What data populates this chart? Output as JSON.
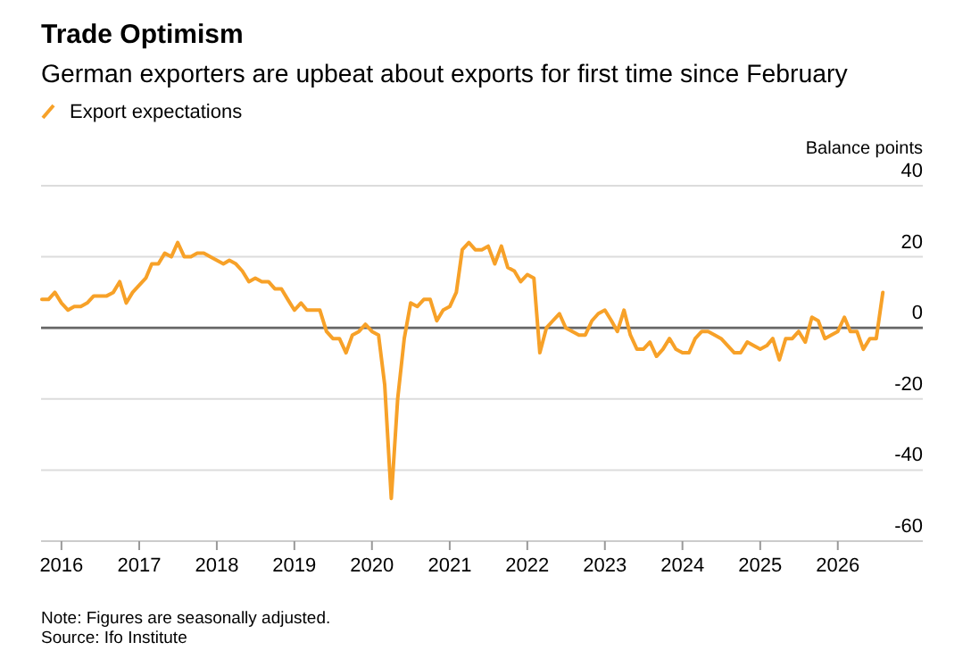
{
  "chart_data": {
    "type": "line",
    "title": "Trade Optimism",
    "subtitle": "German exporters are upbeat about exports for first time since February",
    "ylabel": "Balance points",
    "x": [
      "2015-10",
      "2015-11",
      "2015-12",
      "2016-01",
      "2016-02",
      "2016-03",
      "2016-04",
      "2016-05",
      "2016-06",
      "2016-07",
      "2016-08",
      "2016-09",
      "2016-10",
      "2016-11",
      "2016-12",
      "2017-01",
      "2017-02",
      "2017-03",
      "2017-04",
      "2017-05",
      "2017-06",
      "2017-07",
      "2017-08",
      "2017-09",
      "2017-10",
      "2017-11",
      "2017-12",
      "2018-01",
      "2018-02",
      "2018-03",
      "2018-04",
      "2018-05",
      "2018-06",
      "2018-07",
      "2018-08",
      "2018-09",
      "2018-10",
      "2018-11",
      "2018-12",
      "2019-01",
      "2019-02",
      "2019-03",
      "2019-04",
      "2019-05",
      "2019-06",
      "2019-07",
      "2019-08",
      "2019-09",
      "2019-10",
      "2019-11",
      "2019-12",
      "2020-01",
      "2020-02",
      "2020-03",
      "2020-04",
      "2020-05",
      "2020-06",
      "2020-07",
      "2020-08",
      "2020-09",
      "2020-10",
      "2020-11",
      "2020-12",
      "2021-01",
      "2021-02",
      "2021-03",
      "2021-04",
      "2021-05",
      "2021-06",
      "2021-07",
      "2021-08",
      "2021-09",
      "2021-10",
      "2021-11",
      "2021-12",
      "2022-01",
      "2022-02",
      "2022-03",
      "2022-04",
      "2022-05",
      "2022-06",
      "2022-07",
      "2022-08",
      "2022-09",
      "2022-10",
      "2022-11",
      "2022-12",
      "2023-01",
      "2023-02",
      "2023-03",
      "2023-04",
      "2023-05",
      "2023-06",
      "2023-07",
      "2023-08",
      "2023-09",
      "2023-10",
      "2023-11",
      "2023-12",
      "2024-01",
      "2024-02",
      "2024-03",
      "2024-04",
      "2024-05",
      "2024-06",
      "2024-07",
      "2024-08",
      "2024-09",
      "2024-10",
      "2024-11",
      "2024-12",
      "2025-01",
      "2025-02",
      "2025-03",
      "2025-04",
      "2025-05",
      "2025-06",
      "2025-07",
      "2025-08",
      "2025-09",
      "2025-10",
      "2025-11",
      "2025-12",
      "2026-01",
      "2026-02",
      "2026-03",
      "2026-04",
      "2026-05",
      "2026-06",
      "2026-07",
      "2026-08"
    ],
    "series": [
      {
        "name": "Export expectations",
        "color": "#f7a128",
        "values": [
          8,
          8,
          10,
          7,
          5,
          6,
          6,
          7,
          9,
          9,
          9,
          10,
          13,
          7,
          10,
          12,
          14,
          18,
          18,
          21,
          20,
          24,
          20,
          20,
          21,
          21,
          20,
          19,
          18,
          19,
          18,
          16,
          13,
          14,
          13,
          13,
          11,
          11,
          8,
          5,
          7,
          5,
          5,
          5,
          -1,
          -3,
          -3,
          -7,
          -2,
          -1,
          1,
          -1,
          -2,
          -16,
          -48,
          -20,
          -3,
          7,
          6,
          8,
          8,
          2,
          5,
          6,
          10,
          22,
          24,
          22,
          22,
          23,
          18,
          23,
          17,
          16,
          13,
          15,
          14,
          -7,
          0,
          2,
          4,
          0,
          -1,
          -2,
          -2,
          2,
          4,
          5,
          2,
          -1,
          5,
          -2,
          -6,
          -6,
          -4,
          -8,
          -6,
          -3,
          -6,
          -7,
          -7,
          -3,
          -1,
          -1,
          -2,
          -3,
          -5,
          -7,
          -7,
          -4,
          -5,
          -6,
          -5,
          -3,
          -9,
          -3,
          -3,
          -1,
          -4,
          3,
          2,
          -3,
          -2,
          -1,
          3,
          -1,
          -1,
          -6,
          -3,
          -3,
          10
        ]
      }
    ],
    "xlim": [
      "2015-09-27",
      "2027-02-05"
    ],
    "xticks": [
      "2016",
      "2017",
      "2018",
      "2019",
      "2020",
      "2021",
      "2022",
      "2023",
      "2024",
      "2025",
      "2026"
    ],
    "ylim": [
      -60,
      40
    ],
    "yticks": [
      -60,
      -40,
      -20,
      0,
      20,
      40
    ],
    "ref_lines": [
      {
        "axis": "y",
        "value": 0,
        "color": "#666666"
      }
    ],
    "grid": "y",
    "legend": "top left",
    "marker": "none",
    "line_style": "solid",
    "annotations": [
      "Note: Figures are seasonally adjusted.",
      "Source: Ifo Institute"
    ]
  }
}
